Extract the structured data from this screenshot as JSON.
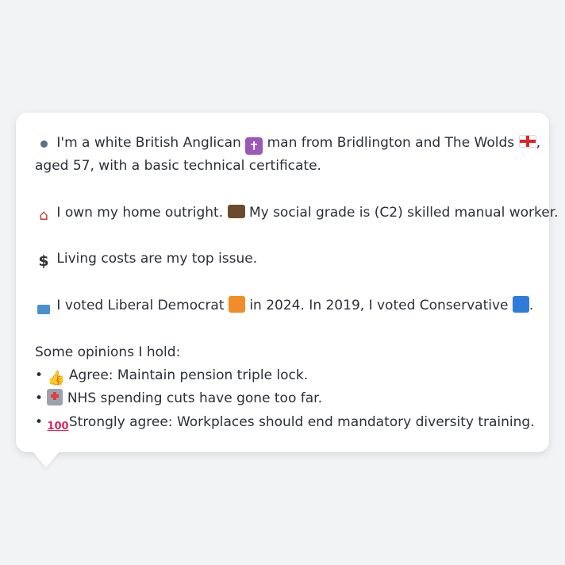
{
  "message": {
    "intro_a": "I'm a white British Anglican",
    "intro_b": "man from Bridlington and The Wolds",
    "intro_c": ",",
    "intro_line2": "aged 57, with a basic technical certificate.",
    "home_text": "I own my home outright.",
    "grade_text": "My social grade is (C2) skilled manual worker.",
    "issue_text": "Living costs are my top issue.",
    "vote_a": "I voted Liberal Democrat",
    "vote_b": "in 2024. In 2019, I voted Conservative",
    "vote_c": ".",
    "opinions_heading": "Some opinions I hold:",
    "bullet": "•",
    "opinions": [
      "Agree: Maintain pension triple lock.",
      "NHS spending cuts have gone too far.",
      "Strongly agree: Workplaces should end mandatory diversity training."
    ]
  },
  "icons": {
    "person": "person-icon",
    "cross": "latin-cross-icon",
    "flag": "england-flag-icon",
    "house": "house-icon",
    "briefcase": "briefcase-icon",
    "dollar": "dollar-sign-icon",
    "ballot": "ballot-box-icon",
    "orange_square": "orange-square-icon",
    "blue_square": "blue-square-icon",
    "thumbs_up": "thumbs-up-icon",
    "hospital": "hospital-icon",
    "hundred": "hundred-points-icon"
  },
  "colors": {
    "background": "#f2f3f5",
    "bubble": "#ffffff",
    "text": "#2b2f36",
    "lib_dem": "#f28c28",
    "conservative": "#2f7bdc"
  }
}
